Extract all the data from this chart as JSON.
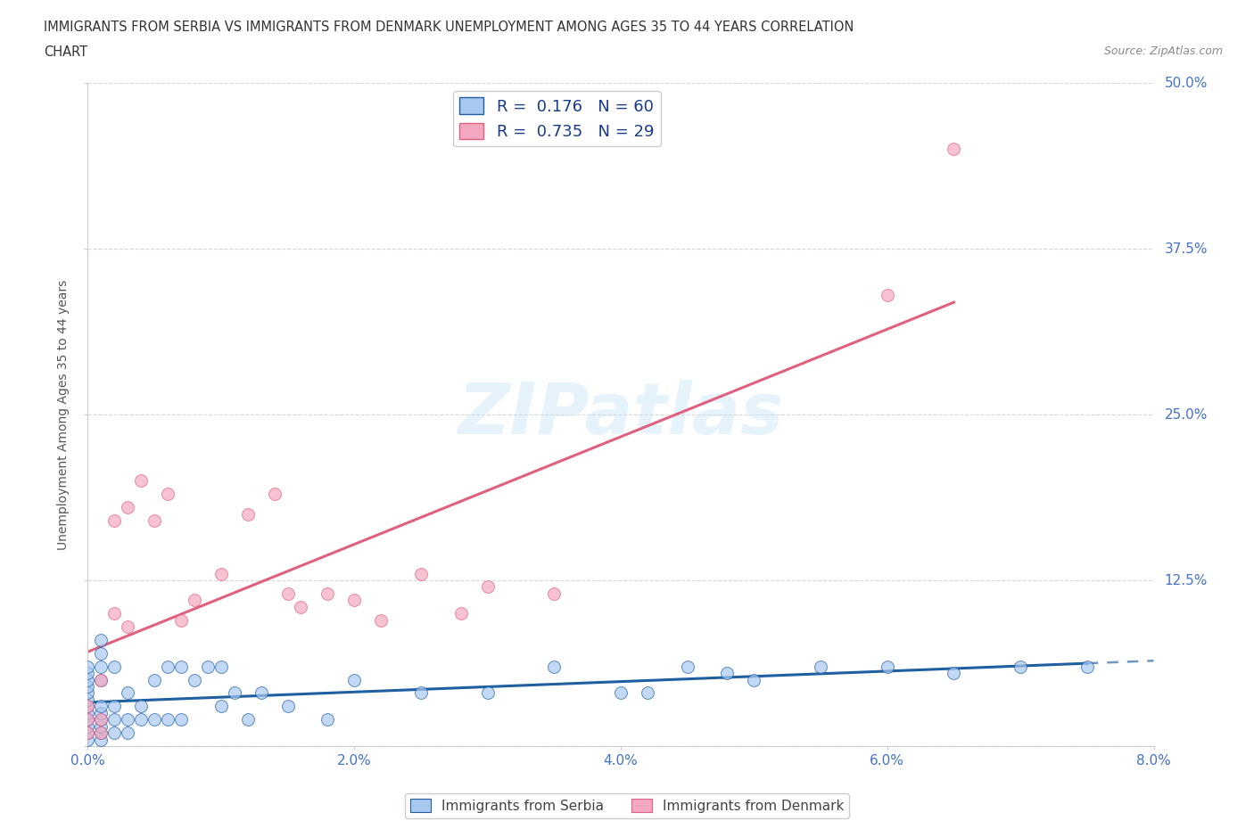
{
  "title_line1": "IMMIGRANTS FROM SERBIA VS IMMIGRANTS FROM DENMARK UNEMPLOYMENT AMONG AGES 35 TO 44 YEARS CORRELATION",
  "title_line2": "CHART",
  "source": "Source: ZipAtlas.com",
  "ylabel": "Unemployment Among Ages 35 to 44 years",
  "xlim": [
    0.0,
    0.08
  ],
  "ylim": [
    0.0,
    0.5
  ],
  "xticks": [
    0.0,
    0.02,
    0.04,
    0.06,
    0.08
  ],
  "yticks": [
    0.0,
    0.125,
    0.25,
    0.375,
    0.5
  ],
  "xticklabels": [
    "0.0%",
    "",
    "4.0%",
    "",
    "8.0%"
  ],
  "yticklabels": [
    "",
    "12.5%",
    "25.0%",
    "37.5%",
    "50.0%"
  ],
  "serbia_color": "#a8c8f0",
  "denmark_color": "#f4a8c0",
  "serbia_R": 0.176,
  "serbia_N": 60,
  "denmark_R": 0.735,
  "denmark_N": 29,
  "serbia_line_color": "#2060a0",
  "denmark_line_color": "#e06080",
  "background_color": "#ffffff",
  "grid_color": "#cccccc",
  "serbia_x": [
    0.0,
    0.0,
    0.0,
    0.0,
    0.0,
    0.0,
    0.0,
    0.0,
    0.0,
    0.0,
    0.0,
    0.0,
    0.001,
    0.001,
    0.001,
    0.001,
    0.001,
    0.001,
    0.001,
    0.001,
    0.001,
    0.001,
    0.002,
    0.002,
    0.002,
    0.002,
    0.003,
    0.003,
    0.003,
    0.004,
    0.004,
    0.005,
    0.005,
    0.006,
    0.006,
    0.007,
    0.007,
    0.008,
    0.009,
    0.01,
    0.01,
    0.011,
    0.012,
    0.013,
    0.015,
    0.018,
    0.02,
    0.025,
    0.03,
    0.035,
    0.04,
    0.042,
    0.045,
    0.048,
    0.05,
    0.055,
    0.06,
    0.065,
    0.07,
    0.075
  ],
  "serbia_y": [
    0.005,
    0.01,
    0.015,
    0.02,
    0.025,
    0.03,
    0.035,
    0.04,
    0.045,
    0.05,
    0.055,
    0.06,
    0.005,
    0.01,
    0.015,
    0.02,
    0.025,
    0.03,
    0.05,
    0.06,
    0.07,
    0.08,
    0.01,
    0.02,
    0.03,
    0.06,
    0.01,
    0.02,
    0.04,
    0.02,
    0.03,
    0.02,
    0.05,
    0.02,
    0.06,
    0.02,
    0.06,
    0.05,
    0.06,
    0.03,
    0.06,
    0.04,
    0.02,
    0.04,
    0.03,
    0.02,
    0.05,
    0.04,
    0.04,
    0.06,
    0.04,
    0.04,
    0.06,
    0.055,
    0.05,
    0.06,
    0.06,
    0.055,
    0.06,
    0.06
  ],
  "denmark_x": [
    0.0,
    0.0,
    0.0,
    0.001,
    0.001,
    0.001,
    0.002,
    0.002,
    0.003,
    0.003,
    0.004,
    0.005,
    0.006,
    0.007,
    0.008,
    0.01,
    0.012,
    0.014,
    0.015,
    0.016,
    0.018,
    0.02,
    0.022,
    0.025,
    0.028,
    0.03,
    0.035,
    0.06,
    0.065
  ],
  "denmark_y": [
    0.01,
    0.02,
    0.03,
    0.01,
    0.02,
    0.05,
    0.1,
    0.17,
    0.09,
    0.18,
    0.2,
    0.17,
    0.19,
    0.095,
    0.11,
    0.13,
    0.175,
    0.19,
    0.115,
    0.105,
    0.115,
    0.11,
    0.095,
    0.13,
    0.1,
    0.12,
    0.115,
    0.34,
    0.45
  ],
  "watermark": "ZIPatlas",
  "legend_label_serbia": "Immigrants from Serbia",
  "legend_label_denmark": "Immigrants from Denmark"
}
